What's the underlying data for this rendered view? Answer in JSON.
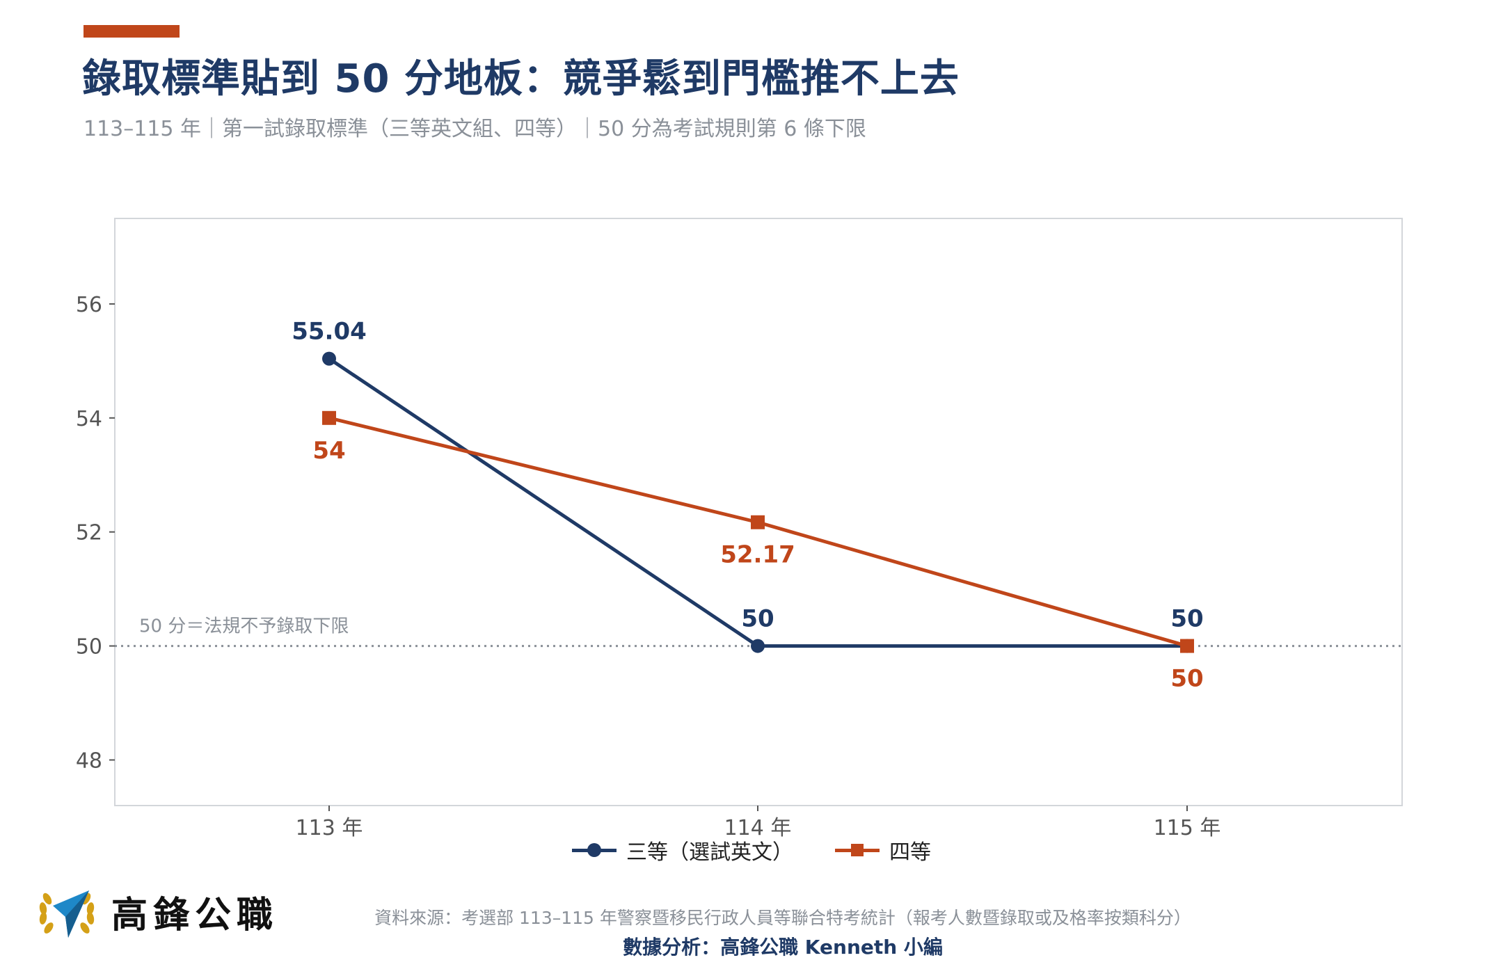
{
  "header": {
    "title": "錄取標準貼到 50 分地板：競爭鬆到門檻推不上去",
    "subtitle": "113–115 年｜第一試錄取標準（三等英文組、四等）｜50 分為考試規則第 6 條下限"
  },
  "chart_data": {
    "type": "line",
    "categories": [
      "113 年",
      "114 年",
      "115 年"
    ],
    "series": [
      {
        "name": "三等（選試英文）",
        "values": [
          55.04,
          50,
          50
        ],
        "labels": [
          "55.04",
          "50",
          "50"
        ],
        "color": "#1F3A66",
        "marker": "circle",
        "label_position": "above"
      },
      {
        "name": "四等",
        "values": [
          54,
          52.17,
          50
        ],
        "labels": [
          "54",
          "52.17",
          "50"
        ],
        "color": "#C0461A",
        "marker": "square",
        "label_position": "below"
      }
    ],
    "y_ticks": [
      "48",
      "50",
      "52",
      "54",
      "56"
    ],
    "ylim": [
      47.2,
      57.5
    ],
    "reference_line": {
      "value": 50,
      "label": "50 分＝法規不予錄取下限",
      "color": "#8A9098"
    },
    "grid": false,
    "legend": "bottom-center"
  },
  "legend": {
    "items": [
      {
        "label": "三等（選試英文）",
        "color": "#1F3A66",
        "marker": "circle"
      },
      {
        "label": "四等",
        "color": "#C0461A",
        "marker": "square"
      }
    ]
  },
  "brand": {
    "name": "高鋒公職",
    "logo_icon": "laurel-arrow-icon"
  },
  "footer": {
    "source": "資料來源：考選部 113–115 年警察暨移民行政人員等聯合特考統計（報考人數暨錄取或及格率按類科分）",
    "credit": "數據分析：高鋒公職 Kenneth 小編"
  },
  "colors": {
    "navy": "#1F3A66",
    "orange": "#C0461A",
    "gray": "#8A9098"
  }
}
